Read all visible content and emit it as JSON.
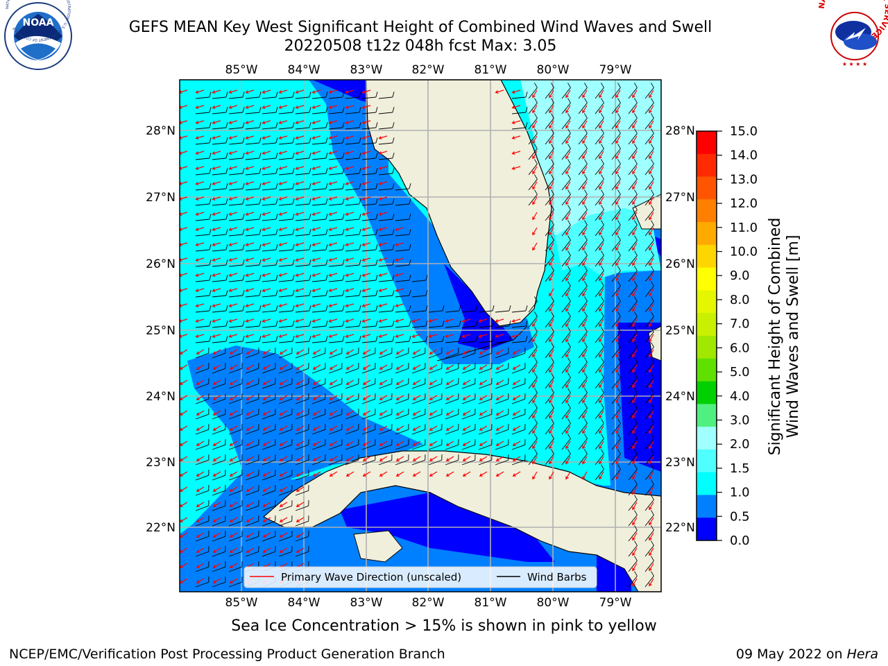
{
  "title": {
    "line1": "GEFS MEAN Key West Significant Height of Combined Wind Waves and Swell",
    "line2": "20220508 t12z 048h fcst   Max: 3.05"
  },
  "logos": {
    "left": "NOAA",
    "left_ring": "NATIONAL OCEANIC AND ATMOSPHERIC ADMINISTRATION · U.S. DEPARTMENT OF COMMERCE",
    "right_ring": "NATIONAL WEATHER SERVICE"
  },
  "map": {
    "lon_ticks": [
      "85°W",
      "84°W",
      "83°W",
      "82°W",
      "81°W",
      "80°W",
      "79°W"
    ],
    "lat_ticks": [
      "28°N",
      "27°N",
      "26°N",
      "25°N",
      "24°N",
      "23°N",
      "22°N"
    ],
    "extent": {
      "lon": [
        -86.0,
        -78.3
      ],
      "lat": [
        21.0,
        28.8
      ]
    }
  },
  "legend": {
    "wave_label": "Primary Wave Direction (unscaled)",
    "barb_label": "Wind Barbs",
    "wave_color": "#ff0000",
    "barb_color": "#000000"
  },
  "colorbar": {
    "label_line1": "Significant Height of Combined",
    "label_line2": "Wind Waves and Swell [m]",
    "ticks": [
      "15.0",
      "14.0",
      "13.0",
      "12.0",
      "11.0",
      "10.0",
      "9.0",
      "8.0",
      "7.0",
      "6.0",
      "5.0",
      "4.0",
      "3.0",
      "2.0",
      "1.5",
      "1.0",
      "0.5",
      "0.0"
    ],
    "colors": [
      "#ff0000",
      "#ff2a00",
      "#ff5500",
      "#ff8000",
      "#ffaa00",
      "#ffd500",
      "#ffff00",
      "#e5f700",
      "#c8f000",
      "#a0e800",
      "#60e000",
      "#00d000",
      "#50f080",
      "#a0ffff",
      "#50ffff",
      "#00ffff",
      "#0080ff",
      "#0000ff"
    ]
  },
  "caption": "Sea Ice Concentration > 15% is shown in pink to yellow",
  "footer": {
    "left": "NCEP/EMC/Verification Post Processing Product Generation Branch",
    "right_date": "09 May 2022 on ",
    "right_host": "Hera"
  }
}
